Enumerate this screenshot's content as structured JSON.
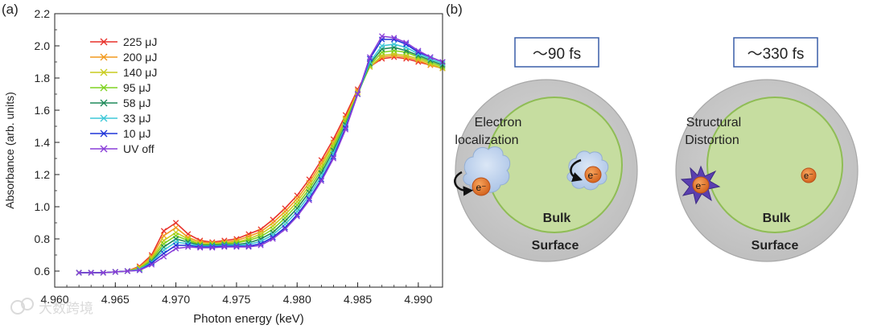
{
  "panels": {
    "a": "(a)",
    "b": "(b)"
  },
  "chart_data": {
    "type": "line",
    "xlabel": "Photon energy (keV)",
    "ylabel": "Absorbance (arb. units)",
    "xlim": [
      4.96,
      4.992
    ],
    "ylim": [
      0.5,
      2.2
    ],
    "xticks": [
      4.96,
      4.965,
      4.97,
      4.975,
      4.98,
      4.985,
      4.99
    ],
    "xtick_labels": [
      "4.960",
      "4.965",
      "4.970",
      "4.975",
      "4.980",
      "4.985",
      "4.990"
    ],
    "yticks": [
      0.6,
      0.8,
      1.0,
      1.2,
      1.4,
      1.6,
      1.8,
      2.0,
      2.2
    ],
    "ytick_labels": [
      "0.6",
      "0.8",
      "1.0",
      "1.2",
      "1.4",
      "1.6",
      "1.8",
      "2.0",
      "2.2"
    ],
    "grid": false,
    "legend_position": "top-left",
    "marker": "x",
    "x": [
      4.962,
      4.963,
      4.964,
      4.965,
      4.966,
      4.967,
      4.968,
      4.969,
      4.97,
      4.971,
      4.972,
      4.973,
      4.974,
      4.975,
      4.976,
      4.977,
      4.978,
      4.979,
      4.98,
      4.981,
      4.982,
      4.983,
      4.984,
      4.985,
      4.986,
      4.987,
      4.988,
      4.989,
      4.99,
      4.991,
      4.992
    ],
    "series": [
      {
        "name": "225 μJ",
        "color": "#e8312a",
        "values": [
          0.59,
          0.59,
          0.59,
          0.595,
          0.6,
          0.63,
          0.7,
          0.85,
          0.9,
          0.83,
          0.79,
          0.78,
          0.79,
          0.8,
          0.83,
          0.86,
          0.92,
          0.99,
          1.07,
          1.17,
          1.29,
          1.42,
          1.57,
          1.73,
          1.87,
          1.92,
          1.93,
          1.92,
          1.9,
          1.88,
          1.86
        ]
      },
      {
        "name": "200 μJ",
        "color": "#f29a1e",
        "values": [
          0.59,
          0.59,
          0.59,
          0.595,
          0.6,
          0.625,
          0.69,
          0.82,
          0.87,
          0.81,
          0.78,
          0.775,
          0.78,
          0.79,
          0.815,
          0.845,
          0.9,
          0.97,
          1.05,
          1.15,
          1.27,
          1.4,
          1.55,
          1.72,
          1.87,
          1.93,
          1.94,
          1.93,
          1.91,
          1.88,
          1.86
        ]
      },
      {
        "name": "140 μJ",
        "color": "#c8cc1e",
        "values": [
          0.59,
          0.59,
          0.59,
          0.595,
          0.6,
          0.62,
          0.68,
          0.79,
          0.84,
          0.8,
          0.77,
          0.77,
          0.775,
          0.78,
          0.8,
          0.83,
          0.88,
          0.95,
          1.03,
          1.13,
          1.25,
          1.39,
          1.54,
          1.71,
          1.87,
          1.94,
          1.95,
          1.94,
          1.92,
          1.89,
          1.86
        ]
      },
      {
        "name": "95 μJ",
        "color": "#7ed320",
        "values": [
          0.59,
          0.59,
          0.59,
          0.595,
          0.6,
          0.615,
          0.67,
          0.77,
          0.82,
          0.79,
          0.765,
          0.765,
          0.77,
          0.775,
          0.79,
          0.815,
          0.86,
          0.93,
          1.01,
          1.11,
          1.23,
          1.37,
          1.53,
          1.7,
          1.88,
          1.96,
          1.97,
          1.96,
          1.93,
          1.9,
          1.87
        ]
      },
      {
        "name": "58 μJ",
        "color": "#1f8a5a",
        "values": [
          0.59,
          0.59,
          0.59,
          0.595,
          0.6,
          0.61,
          0.66,
          0.75,
          0.8,
          0.78,
          0.76,
          0.76,
          0.765,
          0.765,
          0.775,
          0.8,
          0.84,
          0.91,
          0.99,
          1.09,
          1.21,
          1.35,
          1.51,
          1.7,
          1.89,
          1.98,
          1.99,
          1.97,
          1.94,
          1.91,
          1.88
        ]
      },
      {
        "name": "33 μJ",
        "color": "#3ec8d8",
        "values": [
          0.59,
          0.59,
          0.59,
          0.595,
          0.6,
          0.61,
          0.655,
          0.73,
          0.78,
          0.77,
          0.755,
          0.755,
          0.76,
          0.76,
          0.765,
          0.785,
          0.825,
          0.89,
          0.97,
          1.07,
          1.19,
          1.33,
          1.5,
          1.7,
          1.9,
          2.0,
          2.01,
          1.99,
          1.95,
          1.92,
          1.89
        ]
      },
      {
        "name": "10 μJ",
        "color": "#1f35d8",
        "values": [
          0.59,
          0.59,
          0.59,
          0.595,
          0.6,
          0.605,
          0.65,
          0.71,
          0.76,
          0.76,
          0.75,
          0.75,
          0.755,
          0.755,
          0.755,
          0.77,
          0.81,
          0.87,
          0.95,
          1.05,
          1.17,
          1.31,
          1.49,
          1.7,
          1.92,
          2.04,
          2.04,
          2.01,
          1.96,
          1.93,
          1.9
        ]
      },
      {
        "name": "UV off",
        "color": "#8a3ed8",
        "values": [
          0.59,
          0.59,
          0.59,
          0.595,
          0.6,
          0.605,
          0.64,
          0.69,
          0.74,
          0.75,
          0.745,
          0.745,
          0.75,
          0.75,
          0.75,
          0.76,
          0.8,
          0.86,
          0.94,
          1.04,
          1.16,
          1.3,
          1.48,
          1.7,
          1.93,
          2.06,
          2.05,
          2.02,
          1.97,
          1.93,
          1.9
        ]
      }
    ]
  },
  "diagram": {
    "left": {
      "time_label": "～90 fs",
      "process_label_line1": "Electron",
      "process_label_line2": "localization",
      "bulk_label": "Bulk",
      "surface_label": "Surface",
      "electron_symbol": "e⁻"
    },
    "right": {
      "time_label": "～330 fs",
      "process_label_line1": "Structural",
      "process_label_line2": "Distortion",
      "bulk_label": "Bulk",
      "surface_label": "Surface",
      "electron_symbol": "e⁻"
    }
  },
  "watermark": "大数跨境",
  "colors": {
    "surface_fill": "#c9c9c9",
    "surface_stroke": "#a8a8a8",
    "bulk_fill": "#c6dda0",
    "bulk_stroke": "#8fbd55",
    "electron_fill": "#e8792b",
    "cloud_fill": "#b8cde8",
    "distortion_fill": "#5a3fb0",
    "time_box_stroke": "#3a5ea8"
  }
}
